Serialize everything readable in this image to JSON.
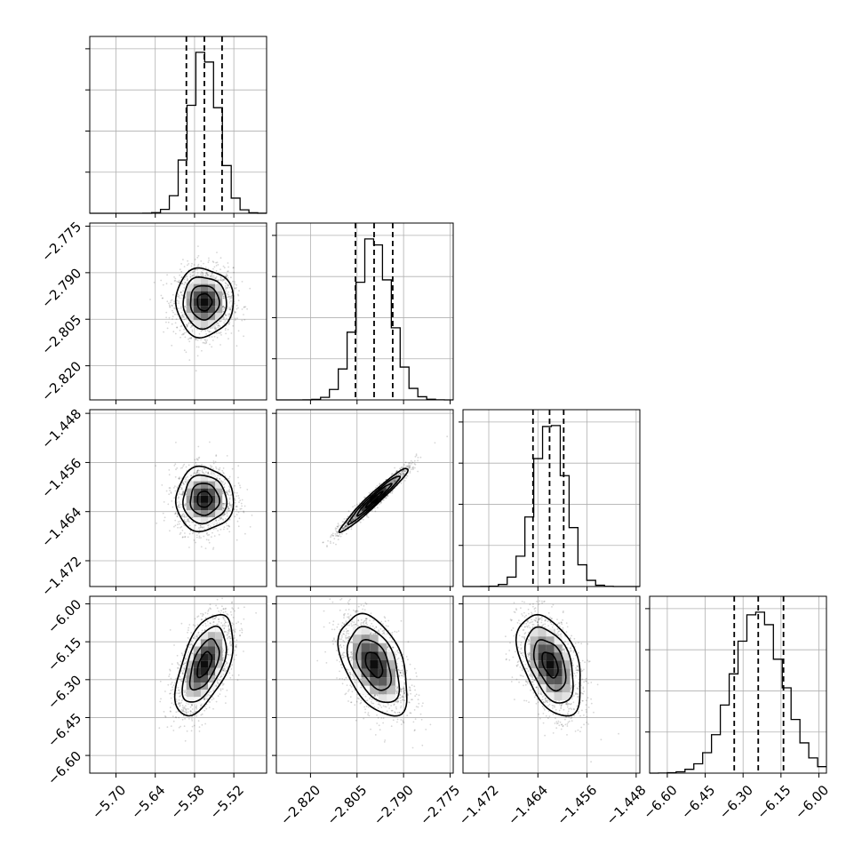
{
  "chart_data": {
    "type": "corner",
    "grid": true,
    "parameters": [
      {
        "range": [
          -5.74,
          -5.47
        ],
        "ticks": [
          -5.7,
          -5.64,
          -5.58,
          -5.52
        ],
        "tick_labels": [
          "−5.70",
          "−5.64",
          "−5.58",
          "−5.52"
        ],
        "mean": -5.565,
        "sd": 0.022,
        "quantiles": [
          -5.5925,
          -5.565,
          -5.538
        ]
      },
      {
        "range": [
          -2.831,
          -2.774
        ],
        "ticks": [
          -2.82,
          -2.805,
          -2.79,
          -2.775
        ],
        "tick_labels": [
          "−2.820",
          "−2.805",
          "−2.790",
          "−2.775"
        ],
        "mean": -2.7995,
        "sd": 0.0055,
        "quantiles": [
          -2.8055,
          -2.7995,
          -2.7935
        ]
      },
      {
        "range": [
          -1.4762,
          -1.4474
        ],
        "ticks": [
          -1.472,
          -1.464,
          -1.456,
          -1.448
        ],
        "tick_labels": [
          "−1.472",
          "−1.464",
          "−1.456",
          "−1.448"
        ],
        "mean": -1.462,
        "sd": 0.0026,
        "quantiles": [
          -1.4648,
          -1.4621,
          -1.4598
        ]
      },
      {
        "range": [
          -6.67,
          -5.97
        ],
        "ticks": [
          -6.6,
          -6.45,
          -6.3,
          -6.15,
          -6.0
        ],
        "tick_labels": [
          "−6.60",
          "−6.45",
          "−6.30",
          "−6.15",
          "−6.00"
        ],
        "mean": -6.24,
        "sd": 0.1,
        "quantiles": [
          -6.335,
          -6.24,
          -6.14
        ]
      }
    ],
    "correlations": [
      {
        "i": 1,
        "j": 0,
        "rho": 0.0
      },
      {
        "i": 2,
        "j": 0,
        "rho": 0.0
      },
      {
        "i": 2,
        "j": 1,
        "rho": 0.97
      },
      {
        "i": 3,
        "j": 0,
        "rho": 0.55
      },
      {
        "i": 3,
        "j": 1,
        "rho": -0.45
      },
      {
        "i": 3,
        "j": 2,
        "rho": -0.45
      }
    ],
    "contour_levels_sigma": [
      0.5,
      1.0,
      1.5,
      2.0
    ]
  }
}
